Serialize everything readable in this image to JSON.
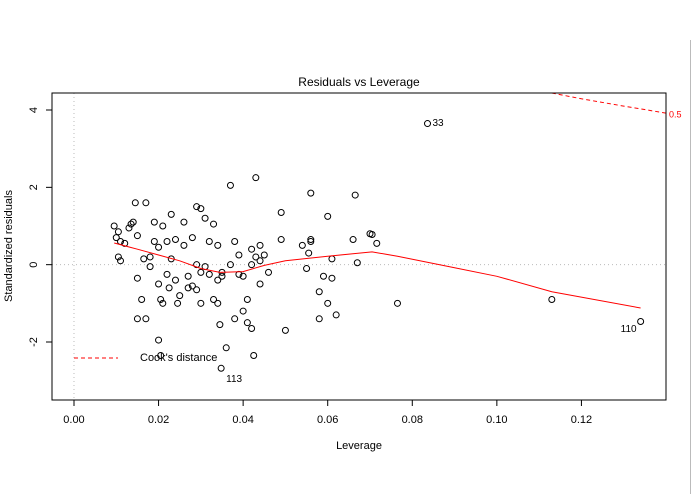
{
  "chart_data": {
    "type": "scatter",
    "title": "Residuals vs Leverage",
    "x_label": "Leverage",
    "y_label": "Standardized residuals",
    "xlim": [
      -0.0052,
      0.14
    ],
    "ylim": [
      -3.5,
      4.44
    ],
    "xticks": [
      {
        "value": 0,
        "label": "0.00"
      },
      {
        "value": 0.02,
        "label": "0.02"
      },
      {
        "value": 0.04,
        "label": "0.04"
      },
      {
        "value": 0.06,
        "label": "0.06"
      },
      {
        "value": 0.08,
        "label": "0.08"
      },
      {
        "value": 0.1,
        "label": "0.10"
      },
      {
        "value": 0.12,
        "label": "0.12"
      }
    ],
    "yticks": [
      -2,
      0,
      2,
      4
    ],
    "hline": 0,
    "vline": 0,
    "point_color": "#000000",
    "points": {
      "x": [
        0.0095,
        0.01,
        0.0105,
        0.011,
        0.0105,
        0.011,
        0.012,
        0.013,
        0.0135,
        0.014,
        0.0145,
        0.015,
        0.015,
        0.015,
        0.016,
        0.0165,
        0.017,
        0.017,
        0.018,
        0.018,
        0.019,
        0.019,
        0.02,
        0.02,
        0.0205,
        0.021,
        0.02,
        0.0205,
        0.021,
        0.022,
        0.022,
        0.0225,
        0.023,
        0.023,
        0.024,
        0.024,
        0.0245,
        0.025,
        0.026,
        0.026,
        0.027,
        0.027,
        0.028,
        0.028,
        0.029,
        0.029,
        0.029,
        0.03,
        0.03,
        0.03,
        0.031,
        0.031,
        0.032,
        0.032,
        0.033,
        0.033,
        0.034,
        0.034,
        0.034,
        0.035,
        0.035,
        0.0345,
        0.036,
        0.037,
        0.037,
        0.038,
        0.038,
        0.039,
        0.039,
        0.04,
        0.04,
        0.041,
        0.041,
        0.042,
        0.042,
        0.042,
        0.043,
        0.043,
        0.0425,
        0.044,
        0.044,
        0.044,
        0.045,
        0.046,
        0.049,
        0.049,
        0.05,
        0.054,
        0.055,
        0.0555,
        0.056,
        0.056,
        0.056,
        0.058,
        0.058,
        0.059,
        0.06,
        0.06,
        0.061,
        0.061,
        0.062,
        0.0665,
        0.066,
        0.067,
        0.07,
        0.0705,
        0.0716,
        0.0765,
        0.113
      ],
      "y": [
        1.0,
        0.7,
        0.85,
        0.6,
        0.2,
        0.1,
        0.55,
        0.95,
        1.05,
        1.1,
        1.6,
        0.75,
        -0.35,
        -1.4,
        -0.9,
        0.15,
        1.6,
        -1.4,
        0.2,
        -0.05,
        0.6,
        1.1,
        0.45,
        -0.5,
        -0.9,
        -1.0,
        -1.95,
        -2.35,
        1.0,
        0.6,
        -0.25,
        -0.6,
        1.3,
        0.15,
        0.65,
        -0.4,
        -1.0,
        -0.8,
        1.1,
        0.5,
        -0.3,
        -0.6,
        0.7,
        -0.55,
        1.5,
        0.0,
        -0.65,
        -0.2,
        1.45,
        -1.0,
        1.2,
        -0.05,
        0.6,
        -0.25,
        1.05,
        -0.9,
        0.5,
        -0.4,
        -1.0,
        -0.2,
        -0.3,
        -1.55,
        -2.15,
        0.0,
        2.05,
        0.6,
        -1.4,
        0.25,
        -0.25,
        -1.2,
        -0.3,
        -1.5,
        -0.9,
        0.4,
        0.0,
        -1.65,
        0.2,
        2.25,
        -2.35,
        0.5,
        0.1,
        -0.5,
        0.25,
        -0.2,
        1.35,
        0.65,
        -1.7,
        0.5,
        -0.1,
        0.3,
        1.85,
        0.6,
        0.65,
        -1.4,
        -0.7,
        -0.3,
        1.25,
        -1.0,
        -0.35,
        0.15,
        -1.3,
        1.8,
        0.65,
        0.05,
        0.8,
        0.78,
        0.55,
        -1.0,
        -0.9
      ]
    },
    "labeled_points": {
      "x": [
        0.0348,
        0.0836,
        0.134
      ],
      "y": [
        -2.68,
        3.65,
        -1.47
      ],
      "labels": [
        "113",
        "33",
        "110"
      ]
    },
    "smooth": {
      "color": "#ff0000",
      "x": [
        0.0095,
        0.015,
        0.02,
        0.025,
        0.03,
        0.0345,
        0.04,
        0.045,
        0.05,
        0.06,
        0.0705,
        0.0765,
        0.09,
        0.1,
        0.113,
        0.134
      ],
      "y": [
        0.56,
        0.4,
        0.25,
        0.1,
        -0.1,
        -0.2,
        -0.18,
        -0.02,
        0.1,
        0.22,
        0.33,
        0.22,
        -0.08,
        -0.3,
        -0.7,
        -1.12
      ]
    },
    "cook": {
      "name": "Cook's distance",
      "color": "#ff0000",
      "label": "0.5",
      "x": [
        0.113,
        0.12,
        0.13,
        0.14
      ],
      "y": [
        4.44,
        4.29,
        4.1,
        3.92
      ]
    }
  }
}
